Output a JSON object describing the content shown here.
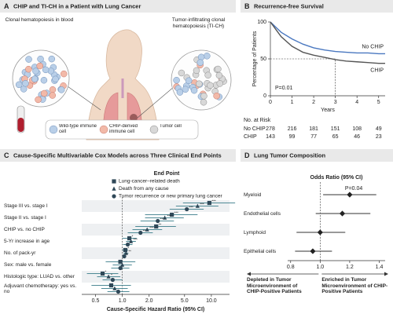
{
  "diagram": {
    "label": "A",
    "title": "CHIP and TI-CH in a Patient with Lung Cancer",
    "left_caption": "Clonal hematopoiesis in blood",
    "right_caption": "Tumor-infiltrating clonal hematopoiesis (TI-CH)",
    "legend": [
      "Wild-type immune cell",
      "CHIP-derived immune cell",
      "Tumor cell"
    ]
  },
  "chart_data": [
    {
      "type": "line",
      "label": "B",
      "title": "Recurrence-free Survival",
      "x_label": "Years",
      "y_label": "Percentage of Patients",
      "annotation": "P=0.01",
      "x": [
        0,
        0.25,
        0.5,
        1,
        1.5,
        2,
        2.5,
        3,
        3.5,
        4,
        4.5,
        5,
        5.3
      ],
      "series": [
        {
          "name": "No CHIP",
          "color": "#4a78c0",
          "values": [
            100,
            93,
            86,
            77,
            70,
            65,
            62,
            60,
            59,
            58,
            58,
            57,
            57
          ]
        },
        {
          "name": "CHIP",
          "color": "#555555",
          "values": [
            100,
            90,
            80,
            67,
            59,
            55,
            52,
            49,
            47,
            46,
            45,
            44,
            44
          ]
        }
      ],
      "xlim": [
        0,
        5.3
      ],
      "xticks": [
        0,
        1,
        2,
        3,
        4,
        5
      ],
      "ylim": [
        0,
        100
      ],
      "yticks": [
        0,
        50,
        100
      ],
      "median_marker": {
        "x": 3,
        "y": 50
      },
      "risk_table": {
        "title": "No. at Risk",
        "rows": [
          {
            "name": "No CHIP",
            "values": [
              278,
              216,
              181,
              151,
              108,
              49
            ]
          },
          {
            "name": "CHIP",
            "values": [
              143,
              99,
              77,
              65,
              46,
              23
            ]
          }
        ]
      }
    },
    {
      "type": "forest",
      "label": "C",
      "title": "Cause-Specific Multivariable Cox Models across Three Clinical End Points",
      "legend_title": "End Point",
      "x_label": "Cause-Specific Hazard Ratio (95% CI)",
      "log_x": true,
      "categories": [
        "Stage III vs. stage I",
        "Stage II vs. stage I",
        "CHIP vs. no CHIP",
        "5-Yr increase in age",
        "No. of pack-yr",
        "Sex: male vs. female",
        "Histologic type: LUAD vs. other",
        "Adjuvant chemotherapy: yes vs. no"
      ],
      "series": [
        {
          "name": "Lung-cancer–related death",
          "marker": "square",
          "color": "#2f4858",
          "values": [
            9.5,
            3.6,
            2.4,
            1.2,
            1.08,
            0.95,
            0.6,
            0.75
          ],
          "lower": [
            4.8,
            1.8,
            1.4,
            1.0,
            1.0,
            0.65,
            0.4,
            0.45
          ],
          "upper": [
            18.5,
            7.0,
            4.0,
            1.45,
            1.16,
            1.4,
            0.9,
            1.25
          ],
          "stars": [
            "***",
            "***",
            "**",
            "*",
            "*",
            null,
            "*",
            null
          ]
        },
        {
          "name": "Death from any cause",
          "marker": "triangle",
          "color": "#2f4858",
          "values": [
            7.0,
            3.0,
            1.9,
            1.25,
            1.1,
            1.0,
            0.7,
            0.82
          ],
          "lower": [
            4.0,
            1.8,
            1.3,
            1.1,
            1.03,
            0.78,
            0.52,
            0.58
          ],
          "upper": [
            12.0,
            4.9,
            2.8,
            1.42,
            1.17,
            1.28,
            0.95,
            1.15
          ],
          "stars": [
            "***",
            "***",
            "***",
            "***",
            "**",
            null,
            "*",
            null
          ]
        },
        {
          "name": "Tumor recurrence or new primary lung cancer",
          "marker": "circle",
          "color": "#2f4858",
          "values": [
            5.3,
            2.5,
            1.6,
            1.15,
            1.05,
            0.95,
            0.78,
            0.9
          ],
          "lower": [
            3.4,
            1.6,
            1.15,
            1.02,
            1.0,
            0.75,
            0.6,
            0.68
          ],
          "upper": [
            8.2,
            3.8,
            2.2,
            1.3,
            1.1,
            1.2,
            1.0,
            1.2
          ],
          "stars": [
            "***",
            "***",
            "**",
            "*",
            "*",
            null,
            null,
            null
          ]
        }
      ],
      "xlim": [
        0.35,
        16
      ],
      "xticks": [
        0.5,
        {
          "value": 1,
          "label": "1.0"
        },
        {
          "value": 2,
          "label": "2.0"
        },
        {
          "value": 5,
          "label": "5.0"
        },
        {
          "value": 10,
          "label": "10.0"
        }
      ],
      "ref_line": 1
    },
    {
      "type": "forest",
      "label": "D",
      "title": "Lung Tumor Composition",
      "legend_title": "Odds Ratio (95% CI)",
      "annotation": "P=0.04",
      "categories": [
        "Myeloid",
        "Endothelial cells",
        "Lymphoid",
        "Epithelial cells"
      ],
      "series": [
        {
          "marker": "diamond",
          "color": "#222222",
          "values": [
            1.2,
            1.15,
            1.0,
            0.95
          ],
          "lower": [
            1.02,
            0.97,
            0.84,
            0.83
          ],
          "upper": [
            1.38,
            1.34,
            1.17,
            1.08
          ]
        }
      ],
      "xlim": [
        0.78,
        1.44
      ],
      "xticks": [
        0.8,
        {
          "value": 1,
          "label": "1.0"
        },
        1.2,
        1.4
      ],
      "ref_line": 1,
      "direction_labels": [
        "Depleted in Tumor Microenvironment of CHIP-Positive Patients",
        "Enriched in Tumor Microenvironment of CHIP-Positive Patients"
      ]
    }
  ]
}
